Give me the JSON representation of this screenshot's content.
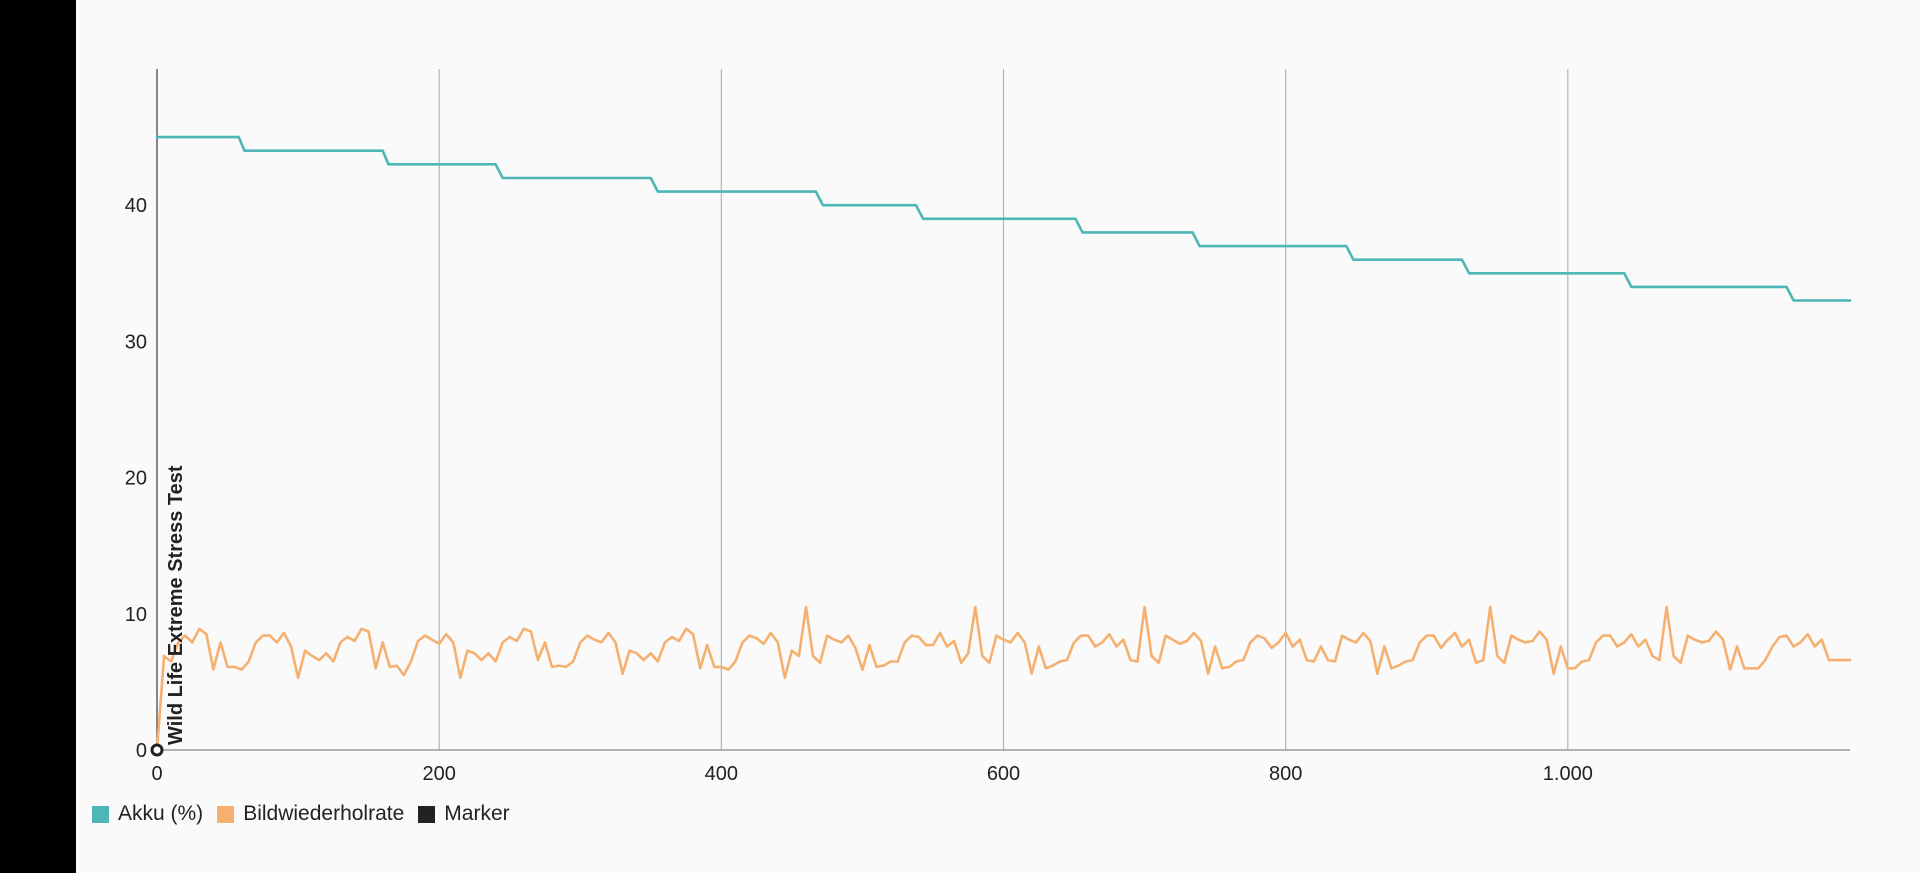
{
  "chart_data": {
    "type": "line",
    "title": "",
    "xlabel": "",
    "ylabel": "",
    "xlim": [
      0,
      1200
    ],
    "ylim": [
      0,
      50
    ],
    "x_ticks": [
      {
        "value": 0,
        "label": "0"
      },
      {
        "value": 200,
        "label": "200"
      },
      {
        "value": 400,
        "label": "400"
      },
      {
        "value": 600,
        "label": "600"
      },
      {
        "value": 800,
        "label": "800"
      },
      {
        "value": 1000,
        "label": "1.000"
      }
    ],
    "y_ticks": [
      {
        "value": 0,
        "label": "0"
      },
      {
        "value": 10,
        "label": "10"
      },
      {
        "value": 20,
        "label": "20"
      },
      {
        "value": 30,
        "label": "30"
      },
      {
        "value": 40,
        "label": "40"
      }
    ],
    "grid": {
      "vertical": true,
      "horizontal": false
    },
    "legend_position": "bottom-left",
    "series": [
      {
        "name": "Akku (%)",
        "color": "#4db6b6",
        "type": "step",
        "points": [
          [
            0,
            45
          ],
          [
            58,
            45
          ],
          [
            62,
            44
          ],
          [
            160,
            44
          ],
          [
            164,
            43
          ],
          [
            240,
            43
          ],
          [
            245,
            42
          ],
          [
            350,
            42
          ],
          [
            355,
            41
          ],
          [
            467,
            41
          ],
          [
            472,
            40
          ],
          [
            538,
            40
          ],
          [
            543,
            39
          ],
          [
            651,
            39
          ],
          [
            656,
            38
          ],
          [
            734,
            38
          ],
          [
            739,
            37
          ],
          [
            843,
            37
          ],
          [
            848,
            36
          ],
          [
            925,
            36
          ],
          [
            930,
            35
          ],
          [
            1040,
            35
          ],
          [
            1045,
            34
          ],
          [
            1155,
            34
          ],
          [
            1160,
            33
          ],
          [
            1200,
            33
          ]
        ]
      },
      {
        "name": "Bildwiederholrate",
        "color": "#f5b070",
        "type": "line",
        "points": [
          [
            0,
            0
          ],
          [
            5,
            6.9
          ],
          [
            10,
            6.5
          ],
          [
            15,
            7.9
          ],
          [
            20,
            8.4
          ],
          [
            25,
            7.9
          ],
          [
            30,
            8.9
          ],
          [
            35,
            8.5
          ],
          [
            40,
            5.9
          ],
          [
            45,
            7.9
          ],
          [
            50,
            6.1
          ],
          [
            55,
            6.1
          ],
          [
            60,
            5.9
          ],
          [
            65,
            6.5
          ],
          [
            70,
            7.9
          ],
          [
            75,
            8.4
          ],
          [
            80,
            8.4
          ],
          [
            85,
            7.9
          ],
          [
            90,
            8.6
          ],
          [
            95,
            7.6
          ],
          [
            100,
            5.3
          ],
          [
            105,
            7.3
          ],
          [
            110,
            6.9
          ],
          [
            115,
            6.6
          ],
          [
            120,
            7.1
          ],
          [
            125,
            6.5
          ],
          [
            130,
            7.9
          ],
          [
            135,
            8.3
          ],
          [
            140,
            8.0
          ],
          [
            145,
            8.9
          ],
          [
            150,
            8.7
          ],
          [
            155,
            6.0
          ],
          [
            160,
            7.9
          ],
          [
            165,
            6.1
          ],
          [
            170,
            6.2
          ],
          [
            175,
            5.5
          ],
          [
            180,
            6.5
          ],
          [
            185,
            8.0
          ],
          [
            190,
            8.4
          ],
          [
            195,
            8.1
          ],
          [
            200,
            7.8
          ],
          [
            205,
            8.5
          ],
          [
            210,
            7.9
          ],
          [
            215,
            5.3
          ],
          [
            220,
            7.3
          ],
          [
            225,
            7.1
          ],
          [
            230,
            6.6
          ],
          [
            235,
            7.1
          ],
          [
            240,
            6.5
          ],
          [
            245,
            7.9
          ],
          [
            250,
            8.3
          ],
          [
            255,
            8.0
          ],
          [
            260,
            8.9
          ],
          [
            265,
            8.7
          ],
          [
            270,
            6.6
          ],
          [
            275,
            7.9
          ],
          [
            280,
            6.1
          ],
          [
            285,
            6.2
          ],
          [
            290,
            6.1
          ],
          [
            295,
            6.5
          ],
          [
            300,
            7.9
          ],
          [
            305,
            8.4
          ],
          [
            310,
            8.1
          ],
          [
            315,
            7.9
          ],
          [
            320,
            8.6
          ],
          [
            325,
            7.9
          ],
          [
            330,
            5.6
          ],
          [
            335,
            7.3
          ],
          [
            340,
            7.1
          ],
          [
            345,
            6.6
          ],
          [
            350,
            7.1
          ],
          [
            355,
            6.5
          ],
          [
            360,
            7.9
          ],
          [
            365,
            8.3
          ],
          [
            370,
            8.0
          ],
          [
            375,
            8.9
          ],
          [
            380,
            8.5
          ],
          [
            385,
            6.0
          ],
          [
            390,
            7.7
          ],
          [
            395,
            6.1
          ],
          [
            400,
            6.1
          ],
          [
            405,
            5.9
          ],
          [
            410,
            6.5
          ],
          [
            415,
            7.9
          ],
          [
            420,
            8.4
          ],
          [
            425,
            8.2
          ],
          [
            430,
            7.8
          ],
          [
            435,
            8.6
          ],
          [
            440,
            7.9
          ],
          [
            445,
            5.3
          ],
          [
            450,
            7.3
          ],
          [
            455,
            6.9
          ],
          [
            460,
            10.5
          ],
          [
            465,
            6.9
          ],
          [
            470,
            6.4
          ],
          [
            475,
            8.4
          ],
          [
            480,
            8.1
          ],
          [
            485,
            7.9
          ],
          [
            490,
            8.4
          ],
          [
            495,
            7.5
          ],
          [
            500,
            5.9
          ],
          [
            505,
            7.7
          ],
          [
            510,
            6.1
          ],
          [
            515,
            6.2
          ],
          [
            520,
            6.5
          ],
          [
            525,
            6.5
          ],
          [
            530,
            7.9
          ],
          [
            535,
            8.4
          ],
          [
            540,
            8.3
          ],
          [
            545,
            7.7
          ],
          [
            550,
            7.7
          ],
          [
            555,
            8.6
          ],
          [
            560,
            7.6
          ],
          [
            565,
            8.0
          ],
          [
            570,
            6.4
          ],
          [
            575,
            7.1
          ],
          [
            580,
            10.5
          ],
          [
            585,
            6.9
          ],
          [
            590,
            6.4
          ],
          [
            595,
            8.4
          ],
          [
            600,
            8.1
          ],
          [
            605,
            7.9
          ],
          [
            610,
            8.6
          ],
          [
            615,
            7.9
          ],
          [
            620,
            5.6
          ],
          [
            625,
            7.6
          ],
          [
            630,
            6.0
          ],
          [
            635,
            6.2
          ],
          [
            640,
            6.5
          ],
          [
            645,
            6.6
          ],
          [
            650,
            7.9
          ],
          [
            655,
            8.4
          ],
          [
            660,
            8.4
          ],
          [
            665,
            7.6
          ],
          [
            670,
            7.9
          ],
          [
            675,
            8.5
          ],
          [
            680,
            7.6
          ],
          [
            685,
            8.1
          ],
          [
            690,
            6.6
          ],
          [
            695,
            6.5
          ],
          [
            700,
            10.5
          ],
          [
            705,
            6.9
          ],
          [
            710,
            6.4
          ],
          [
            715,
            8.4
          ],
          [
            720,
            8.1
          ],
          [
            725,
            7.8
          ],
          [
            730,
            8.0
          ],
          [
            735,
            8.6
          ],
          [
            740,
            8.0
          ],
          [
            745,
            5.6
          ],
          [
            750,
            7.6
          ],
          [
            755,
            6.0
          ],
          [
            760,
            6.1
          ],
          [
            765,
            6.5
          ],
          [
            770,
            6.6
          ],
          [
            775,
            7.9
          ],
          [
            780,
            8.4
          ],
          [
            785,
            8.2
          ],
          [
            790,
            7.5
          ],
          [
            795,
            7.9
          ],
          [
            800,
            8.6
          ],
          [
            805,
            7.6
          ],
          [
            810,
            8.1
          ],
          [
            815,
            6.6
          ],
          [
            820,
            6.5
          ],
          [
            825,
            7.6
          ],
          [
            830,
            6.6
          ],
          [
            835,
            6.5
          ],
          [
            840,
            8.4
          ],
          [
            845,
            8.1
          ],
          [
            850,
            7.9
          ],
          [
            855,
            8.6
          ],
          [
            860,
            8.0
          ],
          [
            865,
            5.6
          ],
          [
            870,
            7.6
          ],
          [
            875,
            6.0
          ],
          [
            880,
            6.2
          ],
          [
            885,
            6.5
          ],
          [
            890,
            6.6
          ],
          [
            895,
            7.9
          ],
          [
            900,
            8.4
          ],
          [
            905,
            8.4
          ],
          [
            910,
            7.5
          ],
          [
            915,
            8.1
          ],
          [
            920,
            8.6
          ],
          [
            925,
            7.6
          ],
          [
            930,
            8.1
          ],
          [
            935,
            6.4
          ],
          [
            940,
            6.6
          ],
          [
            945,
            10.5
          ],
          [
            950,
            6.9
          ],
          [
            955,
            6.4
          ],
          [
            960,
            8.4
          ],
          [
            965,
            8.1
          ],
          [
            970,
            7.9
          ],
          [
            975,
            8.0
          ],
          [
            980,
            8.7
          ],
          [
            985,
            8.1
          ],
          [
            990,
            5.6
          ],
          [
            995,
            7.6
          ],
          [
            1000,
            6.0
          ],
          [
            1005,
            6.0
          ],
          [
            1010,
            6.5
          ],
          [
            1015,
            6.6
          ],
          [
            1020,
            7.9
          ],
          [
            1025,
            8.4
          ],
          [
            1030,
            8.4
          ],
          [
            1035,
            7.6
          ],
          [
            1040,
            7.9
          ],
          [
            1045,
            8.5
          ],
          [
            1050,
            7.6
          ],
          [
            1055,
            8.1
          ],
          [
            1060,
            6.9
          ],
          [
            1065,
            6.6
          ],
          [
            1070,
            10.5
          ],
          [
            1075,
            6.9
          ],
          [
            1080,
            6.4
          ],
          [
            1085,
            8.4
          ],
          [
            1090,
            8.1
          ],
          [
            1095,
            7.9
          ],
          [
            1100,
            8.0
          ],
          [
            1105,
            8.7
          ],
          [
            1110,
            8.1
          ],
          [
            1115,
            5.9
          ],
          [
            1120,
            7.6
          ],
          [
            1125,
            6.0
          ],
          [
            1130,
            6.0
          ],
          [
            1135,
            6.0
          ],
          [
            1140,
            6.6
          ],
          [
            1145,
            7.6
          ],
          [
            1150,
            8.3
          ],
          [
            1155,
            8.4
          ],
          [
            1160,
            7.6
          ],
          [
            1165,
            7.9
          ],
          [
            1170,
            8.5
          ],
          [
            1175,
            7.6
          ],
          [
            1180,
            8.1
          ],
          [
            1185,
            6.6
          ],
          [
            1190,
            6.6
          ],
          [
            1195,
            6.6
          ],
          [
            1200,
            6.6
          ]
        ]
      },
      {
        "name": "Marker",
        "color": "#222222",
        "type": "marker",
        "points": [
          [
            0,
            0
          ]
        ],
        "annotation": "Wild Life Extreme Stress Test"
      }
    ]
  }
}
